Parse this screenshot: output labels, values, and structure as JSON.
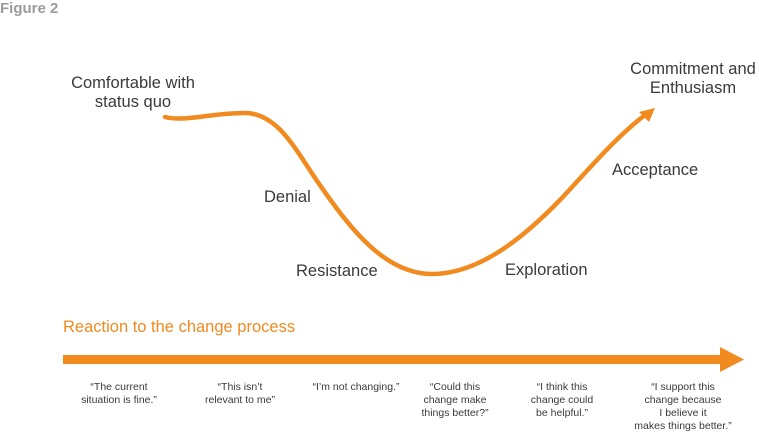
{
  "figure_label": "Figure 2",
  "curve": {
    "start": [
      "Comfortable with",
      "status quo"
    ],
    "end": [
      "Commitment and",
      "Enthusiasm"
    ],
    "stages": [
      "Denial",
      "Resistance",
      "Exploration",
      "Acceptance"
    ]
  },
  "axis": {
    "label": "Reaction to the change process",
    "quotes": [
      [
        "“The current",
        "situation is fine.”"
      ],
      [
        "“This isn’t",
        "relevant to me”"
      ],
      [
        "“I’m not changing.”"
      ],
      [
        "“Could this",
        "change make",
        "things better?”"
      ],
      [
        "“I think this",
        "change could",
        "be helpful.”"
      ],
      [
        "“I support this",
        "change because",
        "I believe it",
        "makes things better.”"
      ]
    ]
  },
  "colors": {
    "accent": "#f18a1f",
    "text": "#3a3a3a",
    "figure_label": "#9b9b9b"
  }
}
